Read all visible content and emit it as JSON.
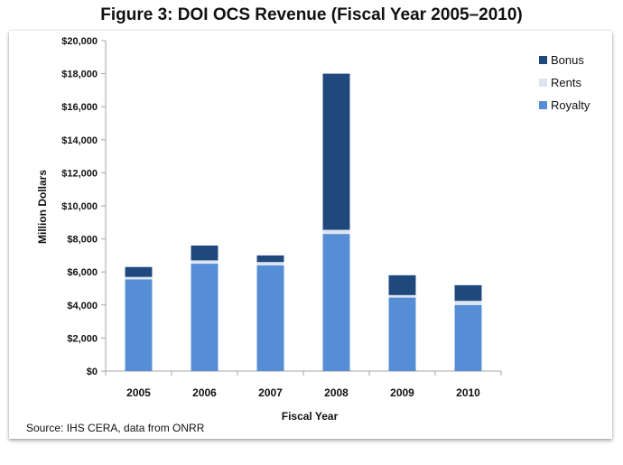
{
  "chart_data": {
    "type": "bar",
    "stacked": true,
    "title": "Figure 3: DOI OCS Revenue (Fiscal Year 2005–2010)",
    "xlabel": "Fiscal Year",
    "ylabel": "Million Dollars",
    "ylim": [
      0,
      20000
    ],
    "yticks": [
      0,
      2000,
      4000,
      6000,
      8000,
      10000,
      12000,
      14000,
      16000,
      18000,
      20000
    ],
    "ytick_labels": [
      "$0",
      "$2,000",
      "$4,000",
      "$6,000",
      "$8,000",
      "$10,000",
      "$12,000",
      "$14,000",
      "$16,000",
      "$18,000",
      "$20,000"
    ],
    "categories": [
      "2005",
      "2006",
      "2007",
      "2008",
      "2009",
      "2010"
    ],
    "series": [
      {
        "name": "Royalty",
        "color": "#558ed5",
        "values": [
          5550,
          6500,
          6400,
          8300,
          4450,
          4000
        ]
      },
      {
        "name": "Rents",
        "color": "#dce6f2",
        "values": [
          150,
          200,
          200,
          250,
          150,
          250
        ]
      },
      {
        "name": "Bonus",
        "color": "#1f497d",
        "values": [
          600,
          900,
          400,
          9450,
          1200,
          950
        ]
      }
    ],
    "legend": {
      "position": "top-right",
      "order": [
        "Bonus",
        "Rents",
        "Royalty"
      ]
    },
    "grid": false,
    "source": "Source: IHS CERA, data from ONRR"
  }
}
